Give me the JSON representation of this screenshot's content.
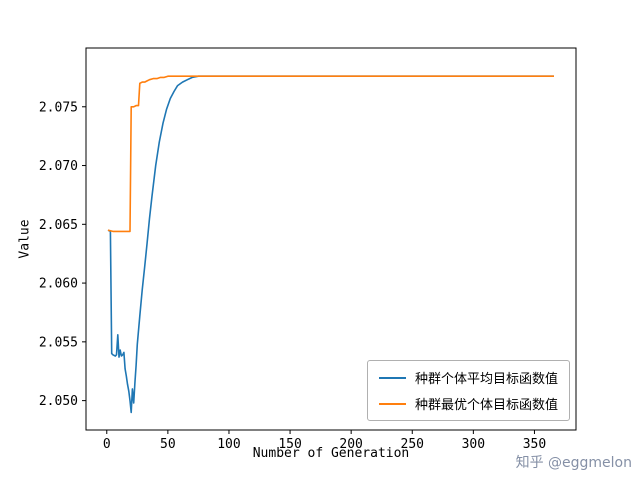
{
  "chart_data": {
    "type": "line",
    "title": "",
    "xlabel": "Number of Generation",
    "ylabel": "Value",
    "xlim": [
      -17,
      384
    ],
    "ylim": [
      2.0475,
      2.08
    ],
    "xticks": [
      0,
      50,
      100,
      150,
      200,
      250,
      300,
      350
    ],
    "yticks": [
      2.05,
      2.055,
      2.06,
      2.065,
      2.07,
      2.075
    ],
    "ytick_labels": [
      "2.050",
      "2.055",
      "2.060",
      "2.065",
      "2.070",
      "2.075"
    ],
    "grid": false,
    "legend_position": "lower right",
    "series": [
      {
        "name": "种群个体平均目标函数值",
        "color": "#1f77b4",
        "x": [
          1,
          3,
          4,
          5,
          7,
          8,
          9,
          10,
          11,
          12,
          13,
          14,
          15,
          16,
          17,
          18,
          19,
          20,
          21,
          22,
          23,
          24,
          25,
          27,
          29,
          31,
          33,
          35,
          37,
          40,
          43,
          46,
          49,
          52,
          55,
          58,
          62,
          66,
          70,
          75,
          80,
          90,
          100,
          120,
          150,
          200,
          250,
          300,
          366
        ],
        "y": [
          2.0645,
          2.0644,
          2.054,
          2.0539,
          2.0538,
          2.0539,
          2.0556,
          2.0537,
          2.0543,
          2.0538,
          2.0539,
          2.0541,
          2.0527,
          2.0521,
          2.0514,
          2.0508,
          2.05,
          2.049,
          2.051,
          2.0498,
          2.0515,
          2.053,
          2.0548,
          2.0572,
          2.0594,
          2.0614,
          2.0634,
          2.0655,
          2.0674,
          2.07,
          2.072,
          2.0736,
          2.0748,
          2.0757,
          2.0763,
          2.0768,
          2.0771,
          2.0773,
          2.0775,
          2.0776,
          2.0776,
          2.0776,
          2.0776,
          2.0776,
          2.0776,
          2.0776,
          2.0776,
          2.0776,
          2.0776
        ]
      },
      {
        "name": "种群最优个体目标函数值",
        "color": "#ff7f0e",
        "x": [
          1,
          5,
          10,
          15,
          19,
          20,
          22,
          24,
          26,
          27,
          29,
          31,
          33,
          35,
          38,
          41,
          44,
          47,
          50,
          60,
          80,
          100,
          150,
          200,
          250,
          300,
          366
        ],
        "y": [
          2.0645,
          2.0644,
          2.0644,
          2.0644,
          2.0644,
          2.075,
          2.075,
          2.0751,
          2.0751,
          2.077,
          2.0771,
          2.0771,
          2.0772,
          2.0773,
          2.0774,
          2.0774,
          2.0775,
          2.0775,
          2.0776,
          2.0776,
          2.0776,
          2.0776,
          2.0776,
          2.0776,
          2.0776,
          2.0776,
          2.0776
        ]
      }
    ]
  },
  "watermark": "知乎 @eggmelon"
}
